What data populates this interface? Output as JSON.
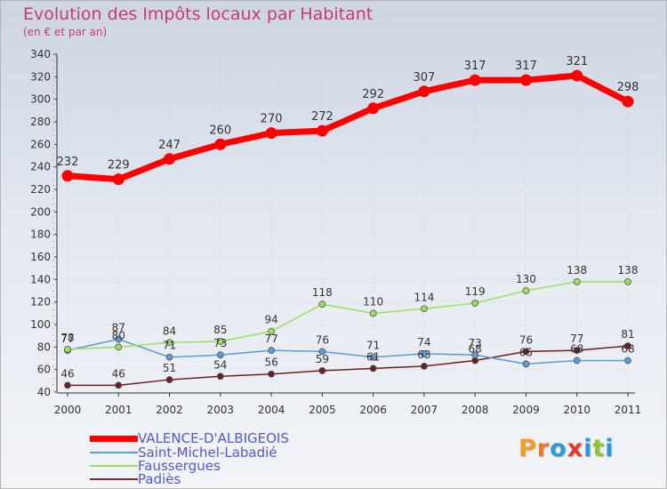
{
  "header": {
    "title": "Evolution des Impôts locaux par Habitant",
    "subtitle": "(en € et par an)"
  },
  "legend": [
    {
      "label": "VALENCE-D'ALBIGEOIS",
      "color": "#ff0000"
    },
    {
      "label": "Saint-Michel-Labadié",
      "color": "#5b9bd5"
    },
    {
      "label": "Faussergues",
      "color": "#99e05a"
    },
    {
      "label": "Padiès",
      "color": "#7a2a2a"
    }
  ],
  "logo": {
    "text": "Proxiti",
    "colors": [
      "#f0a020",
      "#f07820",
      "#2a9bd8",
      "#e8342a",
      "#2a9bd8",
      "#8fc82a",
      "#2a9bd8"
    ]
  },
  "chart_data": {
    "type": "line",
    "title": "Evolution des Impôts locaux par Habitant",
    "ylabel": "(en € et par an)",
    "xlabel": "",
    "categories": [
      "2000",
      "2001",
      "2002",
      "2003",
      "2004",
      "2005",
      "2006",
      "2007",
      "2008",
      "2009",
      "2010",
      "2011"
    ],
    "yticks": [
      "40",
      "60",
      "80",
      "100",
      "120",
      "140",
      "160",
      "180",
      "200",
      "220",
      "240",
      "260",
      "280",
      "300",
      "320",
      "340"
    ],
    "ylim": [
      40,
      340
    ],
    "series": [
      {
        "name": "VALENCE-D'ALBIGEOIS",
        "color": "#ff0000",
        "lineWidth": 7,
        "markerRadius": 6.5,
        "values": [
          232,
          229,
          247,
          260,
          270,
          272,
          292,
          307,
          317,
          317,
          321,
          298
        ],
        "labels": [
          "232",
          "229",
          "247",
          "260",
          "270",
          "272",
          "292",
          "307",
          "317",
          "317",
          "321",
          "298"
        ]
      },
      {
        "name": "Saint-Michel-Labadié",
        "color": "#5b9bd5",
        "lineWidth": 1.5,
        "markerRadius": 3.5,
        "values": [
          77,
          87,
          71,
          73,
          77,
          76,
          71,
          74,
          73,
          65,
          68,
          68
        ],
        "labels": [
          "77",
          "87",
          "71",
          "73",
          "77",
          "76",
          "71",
          "74",
          "73",
          "65",
          "68",
          "68"
        ]
      },
      {
        "name": "Faussergues",
        "color": "#99e05a",
        "lineWidth": 1.5,
        "markerRadius": 3.5,
        "values": [
          78,
          80,
          84,
          85,
          94,
          118,
          110,
          114,
          119,
          130,
          138,
          138
        ],
        "labels": [
          "78",
          "80",
          "84",
          "85",
          "94",
          "118",
          "110",
          "114",
          "119",
          "130",
          "138",
          "138"
        ]
      },
      {
        "name": "Padiès",
        "color": "#6b2020",
        "lineWidth": 1.5,
        "markerRadius": 3.5,
        "values": [
          46,
          46,
          51,
          54,
          56,
          59,
          61,
          63,
          68,
          76,
          77,
          81
        ],
        "labels": [
          "46",
          "46",
          "51",
          "54",
          "56",
          "59",
          "61",
          "63",
          "68",
          "76",
          "77",
          "81"
        ]
      }
    ]
  }
}
